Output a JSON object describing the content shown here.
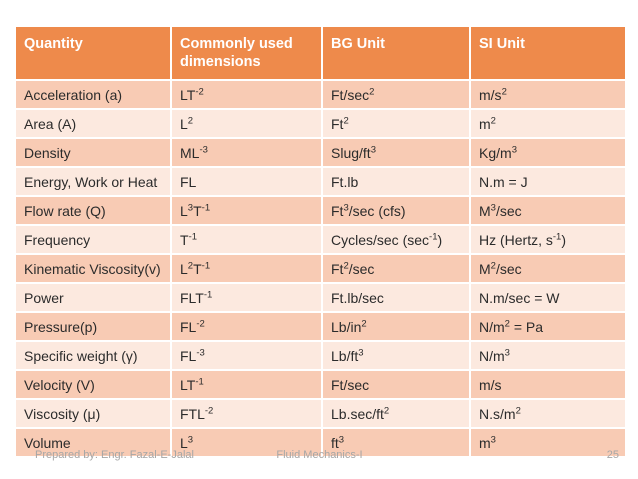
{
  "slide": {
    "colors": {
      "header_bg": "#EE8A4B",
      "header_text": "#FFFFFF",
      "row_odd": "#F8CBB4",
      "row_even": "#FCE9DF",
      "body_text": "#2B2B2B",
      "footer_text": "#A6A6A6"
    },
    "table": {
      "headers": [
        "Quantity",
        "Commonly used dimensions",
        "BG Unit",
        "SI Unit"
      ],
      "rows": [
        [
          "Acceleration (a)",
          "LT^-2",
          "Ft/sec^2",
          "m/s^2"
        ],
        [
          "Area (A)",
          "L^2",
          "Ft^2",
          "m^2"
        ],
        [
          "Density",
          "ML^-3",
          "Slug/ft^3",
          "Kg/m^3"
        ],
        [
          "Energy, Work or Heat",
          "FL",
          "Ft.lb",
          "N.m = J"
        ],
        [
          "Flow rate (Q)",
          "L^3T^-1",
          "Ft^3/sec (cfs)",
          "M^3/sec"
        ],
        [
          "Frequency",
          "T^-1",
          "Cycles/sec (sec^-1)",
          "Hz (Hertz, s^-1)"
        ],
        [
          "Kinematic Viscosity(v)",
          "L^2T^-1",
          "Ft^2/sec",
          "M^2/sec"
        ],
        [
          "Power",
          "FLT^-1",
          "Ft.lb/sec",
          "N.m/sec = W"
        ],
        [
          "Pressure(p)",
          "FL^-2",
          "Lb/in^2",
          "N/m^2 = Pa"
        ],
        [
          "Specific weight (γ)",
          "FL^-3",
          "Lb/ft^3",
          "N/m^3"
        ],
        [
          "Velocity (V)",
          "LT^-1",
          "Ft/sec",
          "m/s"
        ],
        [
          "Viscosity (μ)",
          "FTL^-2",
          "Lb.sec/ft^2",
          "N.s/m^2"
        ],
        [
          "Volume",
          "L^3",
          "ft^3",
          "m^3"
        ]
      ]
    },
    "footer": {
      "prepared_by": "Prepared by: Engr. Fazal-E-Jalal",
      "course": "Fluid Mechanics-I",
      "page_number": "25"
    }
  }
}
